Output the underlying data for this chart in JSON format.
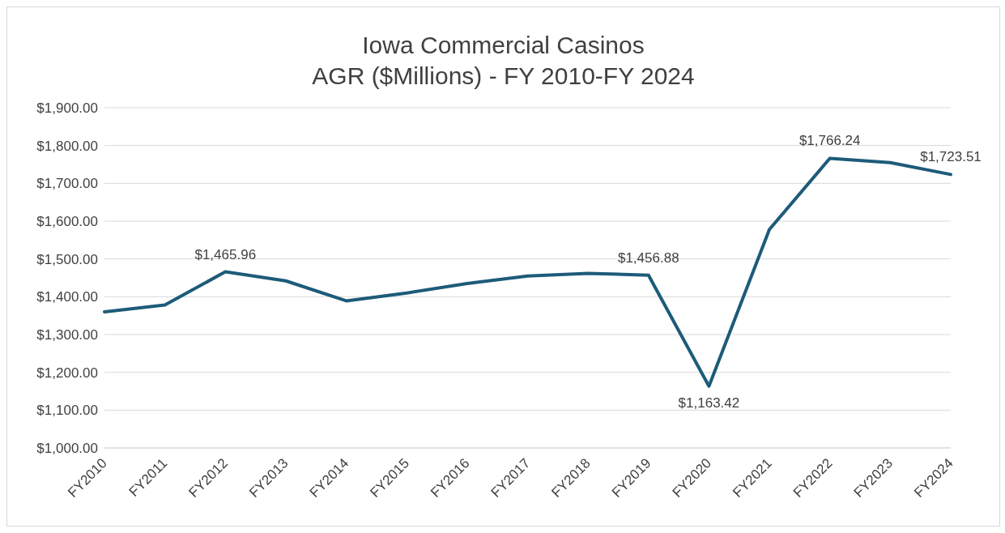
{
  "chart_data": {
    "type": "line",
    "title": "Iowa Commercial Casinos",
    "subtitle": "AGR ($Millions) - FY 2010-FY 2024",
    "categories": [
      "FY2010",
      "FY2011",
      "FY2012",
      "FY2013",
      "FY2014",
      "FY2015",
      "FY2016",
      "FY2017",
      "FY2018",
      "FY2019",
      "FY2020",
      "FY2021",
      "FY2022",
      "FY2023",
      "FY2024"
    ],
    "series": [
      {
        "color": "#1d5b79",
        "values": [
          1360,
          1378,
          1465.96,
          1442,
          1389,
          1410,
          1435,
          1455,
          1462,
          1456.88,
          1163.42,
          1578,
          1766.24,
          1755,
          1723.51
        ],
        "value_labels": [
          null,
          null,
          "$1,465.96",
          null,
          null,
          null,
          null,
          null,
          null,
          "$1,456.88",
          "$1,163.42",
          null,
          "$1,766.24",
          null,
          "$1,723.51"
        ]
      }
    ],
    "ylim": [
      1000,
      1900
    ],
    "yticks": [
      {
        "value": 1000,
        "label": "$1,000.00"
      },
      {
        "value": 1100,
        "label": "$1,100.00"
      },
      {
        "value": 1200,
        "label": "$1,200.00"
      },
      {
        "value": 1300,
        "label": "$1,300.00"
      },
      {
        "value": 1400,
        "label": "$1,400.00"
      },
      {
        "value": 1500,
        "label": "$1,500.00"
      },
      {
        "value": 1600,
        "label": "$1,600.00"
      },
      {
        "value": 1700,
        "label": "$1,700.00"
      },
      {
        "value": 1800,
        "label": "$1,800.00"
      },
      {
        "value": 1900,
        "label": "$1,900.00"
      }
    ],
    "grid": "y",
    "marker": "none",
    "line_style": "solid",
    "legend": false
  }
}
